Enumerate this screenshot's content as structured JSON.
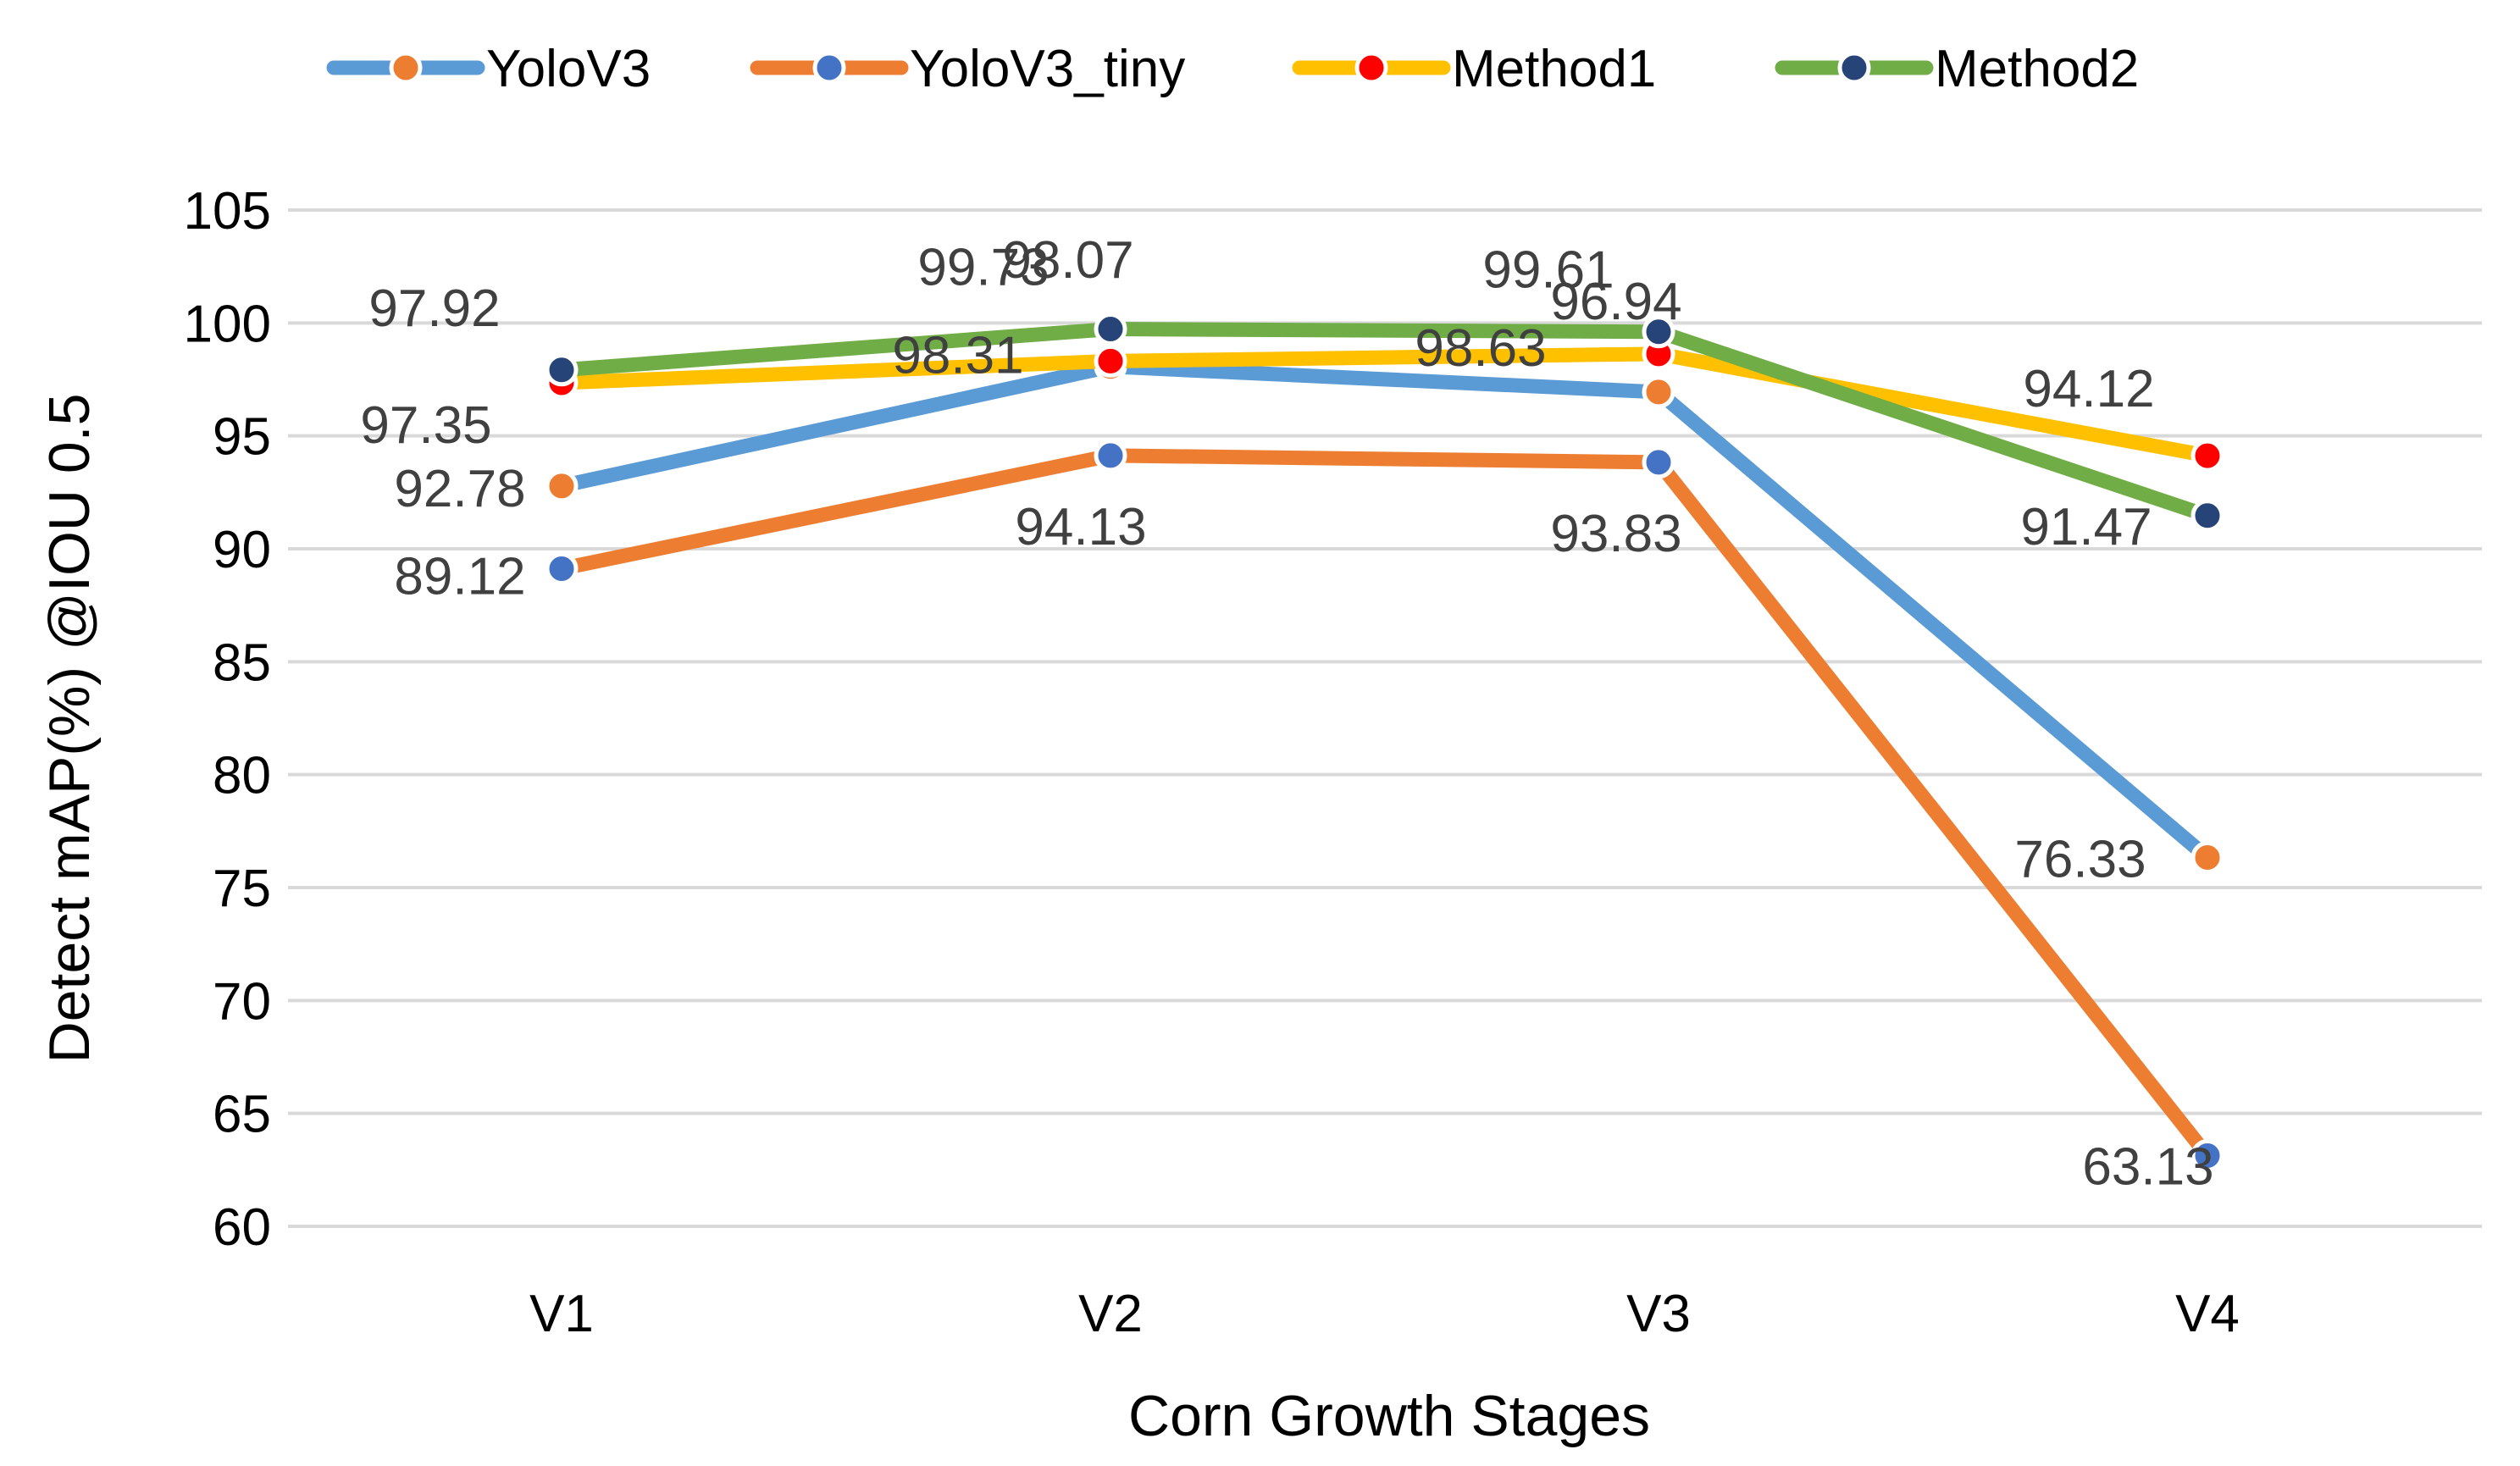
{
  "chart_data": {
    "type": "line",
    "title": "",
    "xlabel": "Corn Growth Stages",
    "ylabel": "Detect   mAP(%) @IOU 0.5",
    "categories": [
      "V1",
      "V2",
      "V3",
      "V4"
    ],
    "ylim": [
      60,
      105
    ],
    "yticks": [
      60,
      65,
      70,
      75,
      80,
      85,
      90,
      95,
      100,
      105
    ],
    "grid": "horizontal",
    "legend_position": "top",
    "series": [
      {
        "name": "YoloV3",
        "values": [
          92.78,
          98.07,
          96.94,
          76.33
        ],
        "line_color": "#5B9BD5",
        "marker_color": "#ED7D31",
        "labels": [
          "92.78",
          "98.07",
          "96.94",
          "76.33"
        ]
      },
      {
        "name": "YoloV3_tiny",
        "values": [
          89.12,
          94.13,
          93.83,
          63.13
        ],
        "line_color": "#ED7D31",
        "marker_color": "#4472C4",
        "labels": [
          "89.12",
          "94.13",
          "93.83",
          "63.13"
        ]
      },
      {
        "name": "Method1",
        "values": [
          97.35,
          98.31,
          98.63,
          94.12
        ],
        "line_color": "#FFC000",
        "marker_color": "#FF0000",
        "labels": [
          "97.35",
          "98.31",
          "98.63",
          "94.12"
        ]
      },
      {
        "name": "Method2",
        "values": [
          97.92,
          99.73,
          99.61,
          91.47
        ],
        "line_color": "#70AD47",
        "marker_color": "#264478",
        "labels": [
          "97.92",
          "99.73",
          "99.61",
          "91.47"
        ]
      }
    ]
  }
}
